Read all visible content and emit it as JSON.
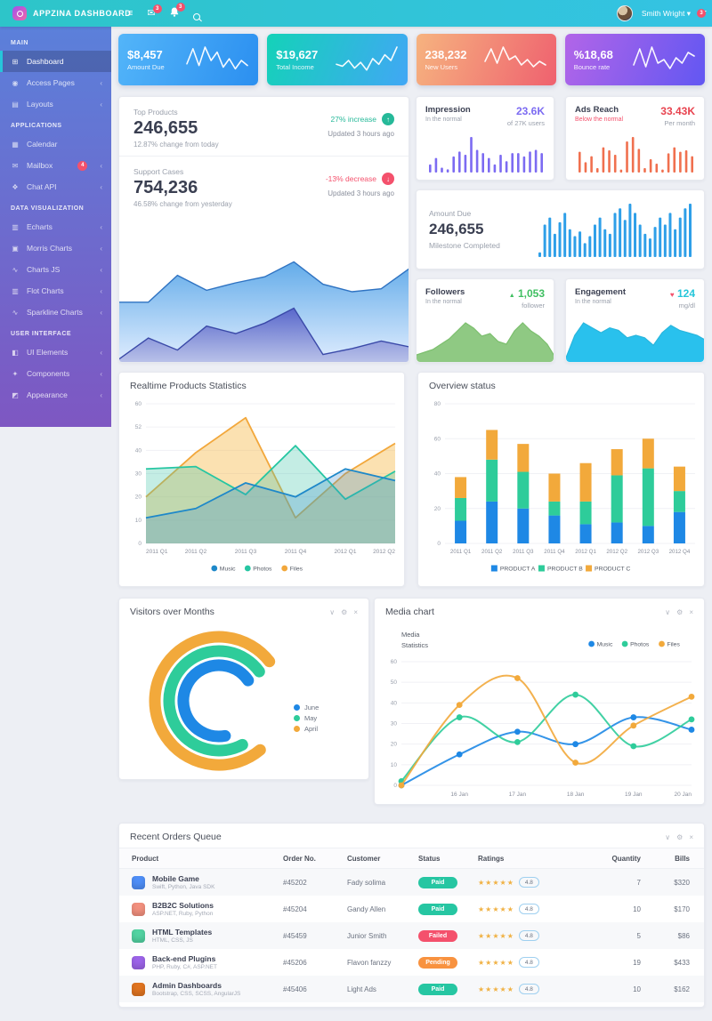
{
  "navbar": {
    "brand": "APPZINA DASHBOARD",
    "user": "Smith Wright",
    "user_caret": "▾",
    "badges": {
      "mail": "3",
      "alerts": "3",
      "chat": "3"
    }
  },
  "sidebar": {
    "sections": [
      {
        "title": "MAIN",
        "items": [
          {
            "label": "Dashboard",
            "icon": "dashboard-icon",
            "glyph": "⊞",
            "active": true
          },
          {
            "label": "Access Pages",
            "icon": "lock-icon",
            "glyph": "◉",
            "chevron": true
          },
          {
            "label": "Layouts",
            "icon": "layout-icon",
            "glyph": "▤",
            "chevron": true
          }
        ]
      },
      {
        "title": "APPLICATIONS",
        "items": [
          {
            "label": "Calendar",
            "icon": "calendar-icon",
            "glyph": "▦"
          },
          {
            "label": "Mailbox",
            "icon": "mail-icon",
            "glyph": "✉",
            "badge": "4",
            "chevron": true
          },
          {
            "label": "Chat API",
            "icon": "chat-icon",
            "glyph": "❖",
            "chevron": true
          }
        ]
      },
      {
        "title": "DATA VISUALIZATION",
        "items": [
          {
            "label": "Echarts",
            "icon": "bar-chart-icon",
            "glyph": "▥",
            "chevron": true
          },
          {
            "label": "Morris Charts",
            "icon": "area-chart-icon",
            "glyph": "▣",
            "chevron": true
          },
          {
            "label": "Charts JS",
            "icon": "line-chart-icon",
            "glyph": "∿",
            "chevron": true
          },
          {
            "label": "Flot Charts",
            "icon": "bar-chart-icon",
            "glyph": "▥",
            "chevron": true
          },
          {
            "label": "Sparkline Charts",
            "icon": "sparkline-icon",
            "glyph": "∿",
            "chevron": true
          }
        ]
      },
      {
        "title": "USER INTERFACE",
        "items": [
          {
            "label": "UI Elements",
            "icon": "elements-icon",
            "glyph": "◧",
            "chevron": true
          },
          {
            "label": "Components",
            "icon": "components-icon",
            "glyph": "✦",
            "chevron": true
          },
          {
            "label": "Appearance",
            "icon": "appearance-icon",
            "glyph": "◩",
            "chevron": true
          }
        ]
      }
    ]
  },
  "stat_cards": [
    {
      "value": "$8,457",
      "label": "Amount Due",
      "g1": "#53b5f9",
      "g2": "#2b8ff0",
      "spark": [
        6,
        15,
        5,
        16,
        8,
        13,
        4,
        9,
        3,
        8,
        5
      ]
    },
    {
      "value": "$19,627",
      "label": "Total Income",
      "g1": "#14d2b8",
      "g2": "#41a7f5",
      "spark": [
        5,
        4,
        7,
        3,
        6,
        2,
        8,
        5,
        10,
        7,
        14
      ]
    },
    {
      "value": "238,232",
      "label": "New Users",
      "g1": "#f6b37f",
      "g2": "#ef616f",
      "spark": [
        7,
        14,
        6,
        15,
        8,
        10,
        5,
        8,
        4,
        7,
        5
      ]
    },
    {
      "value": "%18,68",
      "label": "Bounce rate",
      "g1": "#b265e8",
      "g2": "#6257f2",
      "spark": [
        5,
        14,
        4,
        15,
        6,
        8,
        3,
        9,
        6,
        12,
        10
      ]
    }
  ],
  "top_products": {
    "items": [
      {
        "title": "Top Products",
        "value": "246,655",
        "change": "12.87% change from today",
        "delta": "27% increase",
        "arrow": "↑",
        "updated": "Updated 3 hours ago"
      },
      {
        "title": "Support Cases",
        "value": "754,236",
        "change": "46.58% change from yesterday",
        "delta": "-13% decrease",
        "arrow": "↓",
        "updated": "Updated 3 hours ago"
      }
    ]
  },
  "mini_cards": {
    "impression": {
      "title": "Impression",
      "subtitle": "In the normal",
      "value": "23.6K",
      "unit": "of 27K users",
      "color": "#7c6bf2",
      "bars": [
        5,
        9,
        3,
        2,
        10,
        13,
        11,
        22,
        14,
        12,
        9,
        5,
        11,
        7,
        12,
        12,
        10,
        13,
        14,
        12
      ]
    },
    "ads": {
      "title": "Ads Reach",
      "subtitle": "Below the normal",
      "value": "33.43K",
      "unit": "Per month",
      "color": "#e8434f",
      "bar_color": "#f0704f",
      "bars": [
        14,
        7,
        11,
        3,
        17,
        15,
        12,
        2,
        21,
        24,
        16,
        3,
        9,
        6,
        2,
        13,
        17,
        14,
        15,
        11
      ]
    },
    "amount_due": {
      "title": "Amount Due",
      "value": "246,655",
      "subtitle": "Milestone Completed",
      "color": "#2e9fe8",
      "bars": [
        2,
        14,
        17,
        10,
        15,
        19,
        12,
        9,
        11,
        6,
        9,
        14,
        17,
        12,
        10,
        19,
        21,
        16,
        23,
        19,
        14,
        10,
        8,
        13,
        17,
        14,
        19,
        12,
        17,
        21,
        23
      ]
    },
    "followers": {
      "title": "Followers",
      "subtitle": "In the normal",
      "icon": "▲",
      "value": "1,053",
      "unit": "follower",
      "color": "#3fbf61",
      "line": "#7cbf6e",
      "fill": "#8fc983",
      "area": [
        2,
        3,
        4,
        6,
        8,
        11,
        14,
        12,
        9,
        10,
        7,
        6,
        11,
        14,
        11,
        9,
        6,
        1
      ]
    },
    "engagement": {
      "title": "Engagement",
      "subtitle": "In the normal",
      "icon": "♥",
      "value": "124",
      "unit": "mg/dl",
      "color": "#26c6da",
      "icon_color": "#f4516c",
      "line": "#29b6dd",
      "fill": "#29c1ed",
      "area": [
        1,
        10,
        15,
        13,
        11,
        13,
        12,
        9,
        10,
        9,
        6,
        11,
        14,
        12,
        11,
        10,
        8
      ]
    }
  },
  "chart_data": [
    {
      "id": "top-products-trend",
      "type": "area",
      "series": [
        {
          "name": "upper",
          "color": "#2f73c2",
          "fill1": "#5aa7e8",
          "fill2": "#dbeafe",
          "values": [
            0.4,
            0.4,
            0.58,
            0.48,
            0.53,
            0.57,
            0.67,
            0.52,
            0.47,
            0.49,
            0.63
          ]
        },
        {
          "name": "lower",
          "color": "#3a49a8",
          "fill1": "#5562c9",
          "fill2": "#b4bce6",
          "values": [
            0.02,
            0.16,
            0.08,
            0.24,
            0.19,
            0.26,
            0.36,
            0.05,
            0.09,
            0.14,
            0.1
          ]
        }
      ]
    },
    {
      "id": "realtime",
      "type": "area",
      "title": "Realtime Products Statistics",
      "categories": [
        "2011 Q1",
        "2011 Q2",
        "2011 Q3",
        "2011 Q4",
        "2012 Q1",
        "2012 Q2"
      ],
      "yticks": [
        "0",
        "10",
        "20",
        "30",
        "40",
        "52",
        "60"
      ],
      "ymax": 60,
      "grid": true,
      "legend_position": "bottom",
      "series": [
        {
          "name": "Music",
          "color": "#1e88c9",
          "fill": "rgba(60,140,200,0.28)",
          "values": [
            11,
            15,
            26,
            20,
            32,
            27
          ]
        },
        {
          "name": "Photos",
          "color": "#26c6a2",
          "fill": "rgba(70,200,170,0.32)",
          "values": [
            32,
            33,
            21,
            42,
            19,
            31
          ]
        },
        {
          "name": "Files",
          "color": "#f2a73b",
          "fill": "rgba(245,180,60,0.40)",
          "values": [
            20,
            39,
            54,
            11,
            30,
            43
          ]
        }
      ]
    },
    {
      "id": "overview",
      "type": "bar",
      "title": "Overview status",
      "categories": [
        "2011 Q1",
        "2011 Q2",
        "2011 Q3",
        "2011 Q4",
        "2012 Q1",
        "2012 Q2",
        "2012 Q3",
        "2012 Q4"
      ],
      "yticks": [
        "0",
        "20",
        "40",
        "60",
        "80"
      ],
      "ymax": 80,
      "grid": true,
      "legend_position": "bottom",
      "series": [
        {
          "name": "PRODUCT A",
          "color": "#1e88e5",
          "values": [
            13,
            24,
            20,
            16,
            11,
            12,
            10,
            18
          ]
        },
        {
          "name": "PRODUCT B",
          "color": "#2ecc9a",
          "values": [
            13,
            24,
            21,
            8,
            13,
            27,
            33,
            12
          ]
        },
        {
          "name": "PRODUCT C",
          "color": "#f2a93b",
          "values": [
            12,
            17,
            16,
            16,
            22,
            15,
            17,
            14
          ]
        }
      ]
    },
    {
      "id": "visitors",
      "type": "pie",
      "title": "Visitors over Months",
      "legend_position": "bottom-right",
      "series": [
        {
          "name": "June",
          "color": "#1e88e5",
          "radius": 40,
          "start": 170,
          "sweep": 245
        },
        {
          "name": "May",
          "color": "#2ecc9a",
          "radius": 56,
          "start": 152,
          "sweep": 262
        },
        {
          "name": "April",
          "color": "#f2a93b",
          "radius": 72,
          "start": 140,
          "sweep": 272
        }
      ]
    },
    {
      "id": "media",
      "type": "line",
      "title": "Media chart",
      "corner_label_1": "Media",
      "corner_label_2": "Statistics",
      "legend_position": "top-right",
      "categories": [
        "",
        "16 Jan",
        "17 Jan",
        "18 Jan",
        "19 Jan",
        "20 Jan"
      ],
      "yticks": [
        "0",
        "10",
        "20",
        "30",
        "40",
        "50",
        "60"
      ],
      "ymax": 60,
      "grid": true,
      "series": [
        {
          "name": "Music",
          "color": "#1e88e5",
          "values": [
            0,
            15,
            26,
            20,
            33,
            27
          ]
        },
        {
          "name": "Photos",
          "color": "#2ecc9a",
          "values": [
            2,
            33,
            21,
            44,
            19,
            32
          ]
        },
        {
          "name": "Files",
          "color": "#f2a93b",
          "values": [
            0,
            39,
            52,
            11,
            29,
            43
          ]
        }
      ]
    }
  ],
  "orders": {
    "title": "Recent Orders Queue",
    "columns": [
      "Product",
      "Order No.",
      "Customer",
      "Status",
      "Ratings",
      "Quantity",
      "Bills"
    ],
    "status_colors": {
      "Paid": "#26c6a2",
      "Failed": "#f4516c",
      "Pending": "#f8923f"
    },
    "rows": [
      {
        "product": "Mobile Game",
        "stack": "Swift, Python, Java SDK",
        "icon_color": "#4e8ef7",
        "order": "#45202",
        "customer": "Fady solima",
        "status": "Paid",
        "stars": "★★★★★",
        "rating": "4.8",
        "qty": "7",
        "bills": "$320"
      },
      {
        "product": "B2B2C Solutions",
        "stack": "ASP.NET, Ruby, Python",
        "icon_color": "#f2907e",
        "order": "#45204",
        "customer": "Gandy Allen",
        "status": "Paid",
        "stars": "★★★★★",
        "rating": "4.8",
        "qty": "10",
        "bills": "$170"
      },
      {
        "product": "HTML Templates",
        "stack": "HTML, CSS, JS",
        "icon_color": "#52d3a2",
        "order": "#45459",
        "customer": "Junior Smith",
        "status": "Failed",
        "stars": "★★★★★",
        "rating": "4.8",
        "qty": "5",
        "bills": "$86"
      },
      {
        "product": "Back-end Plugins",
        "stack": "PHP, Ruby, C#, ASP.NET",
        "icon_color": "#9c64e8",
        "order": "#45206",
        "customer": "Flavon fanzzy",
        "status": "Pending",
        "stars": "★★★★★",
        "rating": "4.8",
        "qty": "19",
        "bills": "$433"
      },
      {
        "product": "Admin Dashboards",
        "stack": "Bootstrap, CSS, SCSS, AngularJS",
        "icon_color": "#e07420",
        "order": "#45406",
        "customer": "Light Ads",
        "status": "Paid",
        "stars": "★★★★★",
        "rating": "4.8",
        "qty": "10",
        "bills": "$162"
      }
    ]
  },
  "card_actions": {
    "collapse": "∨",
    "settings": "⚙",
    "close": "×"
  }
}
